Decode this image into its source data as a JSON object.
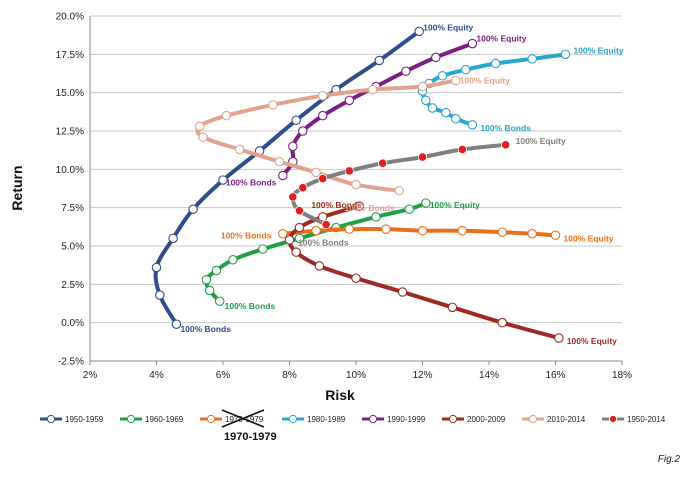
{
  "chart_data": {
    "type": "line",
    "xlabel": "Risk",
    "ylabel": "Return",
    "xlim": [
      2,
      18
    ],
    "ylim": [
      -2.5,
      20
    ],
    "x_ticks": [
      "2%",
      "4%",
      "6%",
      "8%",
      "10%",
      "12%",
      "14%",
      "16%",
      "18%"
    ],
    "y_ticks": [
      "-2.5%",
      "0.0%",
      "2.5%",
      "5.0%",
      "7.5%",
      "10.0%",
      "12.5%",
      "15.0%",
      "17.5%",
      "20.0%"
    ],
    "grid": "horizontal",
    "legend_position": "bottom",
    "figure_label": "Fig.2",
    "struck_label": "1970-1979",
    "series": [
      {
        "name": "1950-1959",
        "color": "#2e4d8c",
        "marker": "hollow",
        "points": [
          [
            4.6,
            -0.1
          ],
          [
            4.1,
            1.8
          ],
          [
            4.0,
            3.6
          ],
          [
            4.5,
            5.5
          ],
          [
            5.1,
            7.4
          ],
          [
            6.0,
            9.3
          ],
          [
            7.1,
            11.2
          ],
          [
            8.2,
            13.2
          ],
          [
            9.4,
            15.2
          ],
          [
            10.7,
            17.1
          ],
          [
            11.9,
            19.0
          ]
        ],
        "labels": [
          {
            "text": "100% Equity",
            "at": "end"
          },
          {
            "text": "100% Bonds",
            "at": "start"
          }
        ]
      },
      {
        "name": "1960-1969",
        "color": "#1fa046",
        "marker": "hollow",
        "points": [
          [
            5.9,
            1.4
          ],
          [
            5.6,
            2.1
          ],
          [
            5.5,
            2.8
          ],
          [
            5.8,
            3.4
          ],
          [
            6.3,
            4.1
          ],
          [
            7.2,
            4.8
          ],
          [
            8.3,
            5.5
          ],
          [
            9.4,
            6.2
          ],
          [
            10.6,
            6.9
          ],
          [
            11.6,
            7.4
          ],
          [
            12.1,
            7.8
          ]
        ],
        "labels": [
          {
            "text": "100% Equity",
            "at": "end"
          },
          {
            "text": "100% Bonds",
            "at": "start"
          }
        ]
      },
      {
        "name": "1970-1979",
        "color": "#e8701a",
        "marker": "hollow",
        "points": [
          [
            7.8,
            5.8
          ],
          [
            8.8,
            6.0
          ],
          [
            9.8,
            6.1
          ],
          [
            10.9,
            6.1
          ],
          [
            12.0,
            6.0
          ],
          [
            13.2,
            6.0
          ],
          [
            14.4,
            5.9
          ],
          [
            15.3,
            5.8
          ],
          [
            16.0,
            5.7
          ]
        ],
        "labels": [
          {
            "text": "100% Equity",
            "at": "end"
          },
          {
            "text": "100% Bonds",
            "at": "start"
          }
        ]
      },
      {
        "name": "1980-1989",
        "color": "#2aa6d0",
        "marker": "hollow",
        "points": [
          [
            13.5,
            12.9
          ],
          [
            13.0,
            13.3
          ],
          [
            12.7,
            13.7
          ],
          [
            12.3,
            14.0
          ],
          [
            12.1,
            14.5
          ],
          [
            12.0,
            15.1
          ],
          [
            12.2,
            15.6
          ],
          [
            12.6,
            16.1
          ],
          [
            13.3,
            16.5
          ],
          [
            14.2,
            16.9
          ],
          [
            15.3,
            17.2
          ],
          [
            16.3,
            17.5
          ]
        ],
        "labels": [
          {
            "text": "100% Equity",
            "at": "end"
          },
          {
            "text": "100% Bonds",
            "at": "start"
          }
        ]
      },
      {
        "name": "1990-1999",
        "color": "#7b1f84",
        "marker": "hollow",
        "points": [
          [
            7.8,
            9.6
          ],
          [
            8.1,
            10.5
          ],
          [
            8.1,
            11.5
          ],
          [
            8.4,
            12.5
          ],
          [
            9.0,
            13.5
          ],
          [
            9.8,
            14.5
          ],
          [
            10.6,
            15.4
          ],
          [
            11.5,
            16.4
          ],
          [
            12.4,
            17.3
          ],
          [
            13.5,
            18.2
          ]
        ],
        "labels": [
          {
            "text": "100% Equity",
            "at": "end"
          },
          {
            "text": "100% Bonds",
            "at": "start"
          }
        ]
      },
      {
        "name": "2000-2009",
        "color": "#9e2a22",
        "marker": "hollow",
        "points": [
          [
            10.1,
            7.6
          ],
          [
            9.0,
            6.9
          ],
          [
            8.3,
            6.2
          ],
          [
            8.0,
            5.4
          ],
          [
            8.2,
            4.6
          ],
          [
            8.9,
            3.7
          ],
          [
            10.0,
            2.9
          ],
          [
            11.4,
            2.0
          ],
          [
            12.9,
            1.0
          ],
          [
            14.4,
            0.0
          ],
          [
            16.1,
            -1.0
          ]
        ],
        "labels": [
          {
            "text": "100% Equity",
            "at": "end"
          },
          {
            "text": "100% Bonds",
            "at": "start"
          }
        ]
      },
      {
        "name": "2010-2014",
        "color": "#e3a28e",
        "marker": "hollow",
        "points": [
          [
            11.3,
            8.6
          ],
          [
            10.0,
            9.0
          ],
          [
            8.8,
            9.8
          ],
          [
            7.7,
            10.5
          ],
          [
            6.5,
            11.3
          ],
          [
            5.4,
            12.1
          ],
          [
            5.3,
            12.8
          ],
          [
            6.1,
            13.5
          ],
          [
            7.5,
            14.2
          ],
          [
            9.0,
            14.8
          ],
          [
            10.5,
            15.2
          ],
          [
            12.0,
            15.4
          ],
          [
            13.0,
            15.8
          ]
        ],
        "labels": [
          {
            "text": "100% Equity",
            "at": "end"
          },
          {
            "text": "100% Bonds",
            "at": "start"
          }
        ]
      },
      {
        "name": "1950-2014",
        "color": "#7f7f7f",
        "marker": "filled",
        "marker_color": "#e02020",
        "points": [
          [
            9.1,
            6.4
          ],
          [
            8.3,
            7.3
          ],
          [
            8.1,
            8.2
          ],
          [
            8.4,
            8.8
          ],
          [
            9.0,
            9.4
          ],
          [
            9.8,
            9.9
          ],
          [
            10.8,
            10.4
          ],
          [
            12.0,
            10.8
          ],
          [
            13.2,
            11.3
          ],
          [
            14.5,
            11.6
          ]
        ],
        "labels": [
          {
            "text": "100% Equity",
            "at": "end"
          },
          {
            "text": "100% Bonds",
            "at": "start"
          }
        ]
      }
    ]
  }
}
